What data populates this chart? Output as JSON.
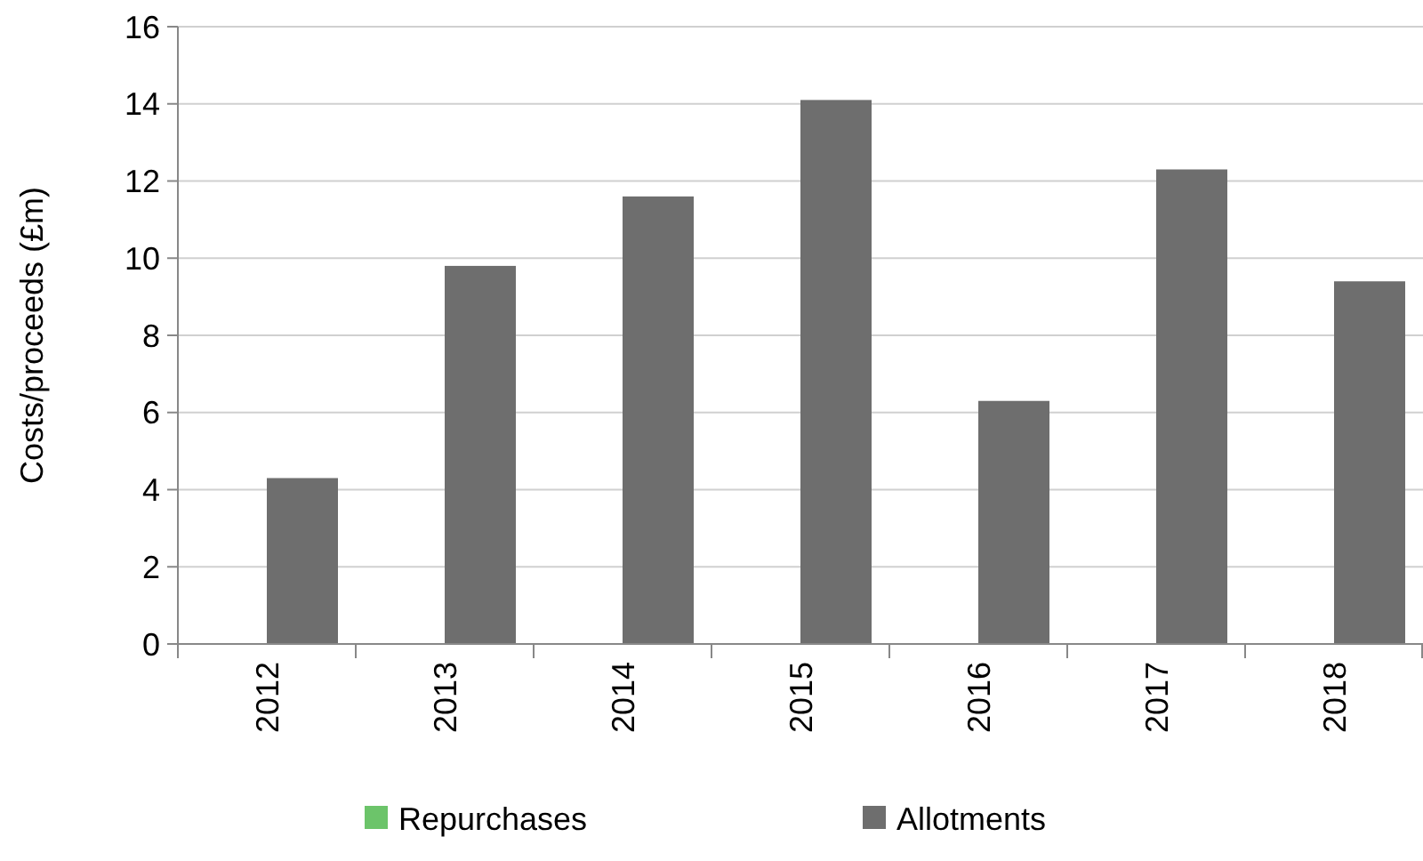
{
  "chart_data": {
    "type": "bar",
    "ylabel": "Costs/proceeds (£m)",
    "categories": [
      "2012",
      "2013",
      "2014",
      "2015",
      "2016",
      "2017",
      "2018"
    ],
    "series": [
      {
        "name": "Repurchases",
        "color": "#6cc46a",
        "values": [
          0,
          0,
          0,
          0,
          0,
          0,
          0
        ]
      },
      {
        "name": "Allotments",
        "color": "#6e6e6e",
        "values": [
          4.3,
          9.8,
          11.6,
          14.1,
          6.3,
          12.3,
          9.4
        ]
      }
    ],
    "ylim": [
      0,
      16
    ],
    "yticks": [
      0,
      2,
      4,
      6,
      8,
      10,
      12,
      14,
      16
    ],
    "grid": "y",
    "legend": "bottom"
  }
}
